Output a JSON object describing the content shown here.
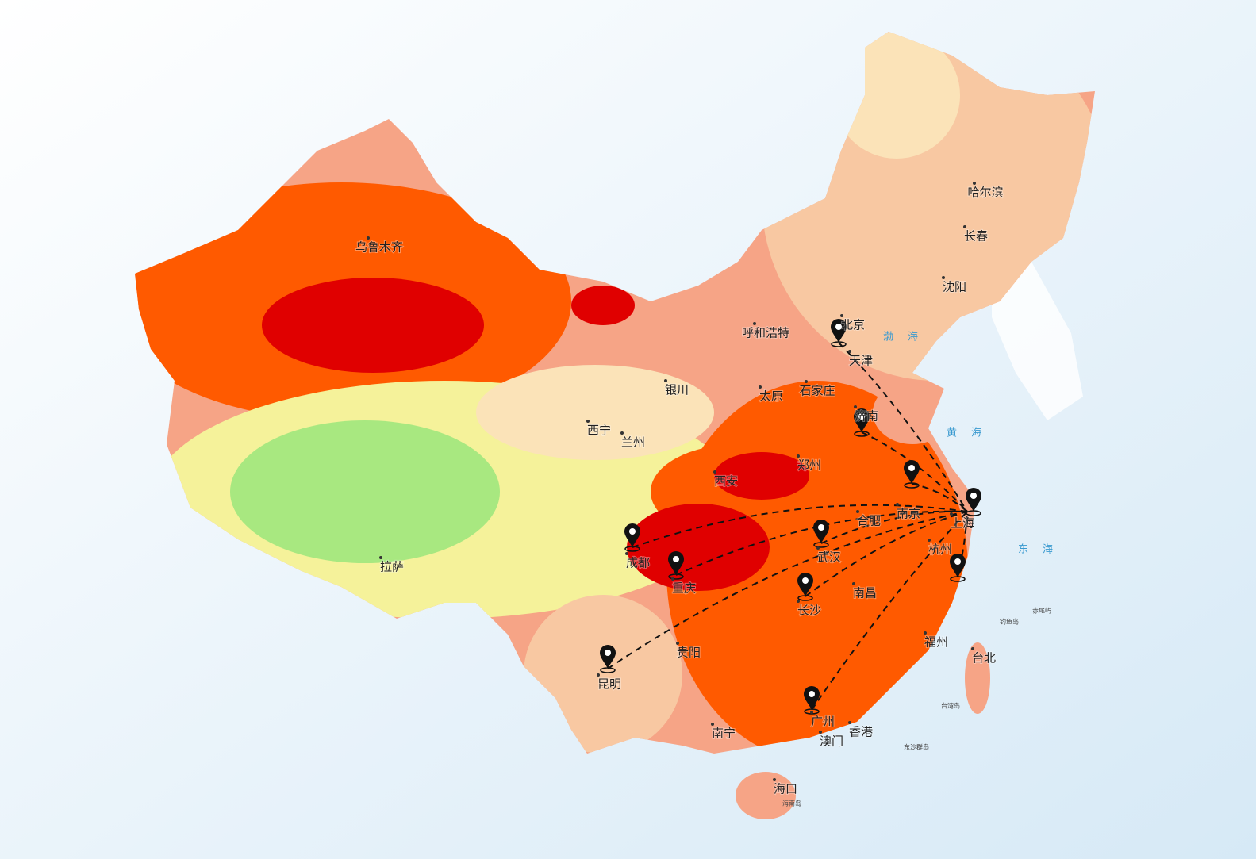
{
  "city_labels": [
    "乌鲁木齐",
    "哈尔滨",
    "长春",
    "沈阳",
    "呼和浩特",
    "北京",
    "天津",
    "银川",
    "太原",
    "石家庄",
    "济南",
    "西宁",
    "兰州",
    "西安",
    "郑州",
    "南京",
    "合肥",
    "上海",
    "成都",
    "重庆",
    "武汉",
    "杭州",
    "拉萨",
    "长沙",
    "南昌",
    "贵阳",
    "福州",
    "台北",
    "昆明",
    "广州",
    "南宁",
    "澳门",
    "香港",
    "海口"
  ],
  "sea_labels": [
    "黄海",
    "东海",
    "渤海"
  ],
  "island_labels": [
    "钓鱼岛",
    "赤尾屿",
    "台湾岛",
    "东沙群岛",
    "海南岛"
  ]
}
